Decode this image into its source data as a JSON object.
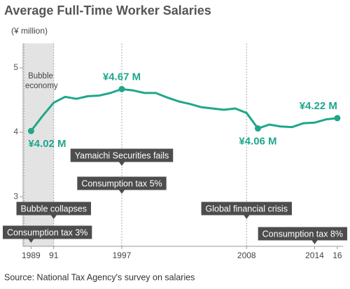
{
  "chart_data": {
    "type": "line",
    "title": "Average Full-Time Worker Salaries",
    "y_label": "(¥ million)",
    "source": "Source: National Tax Agency's survey on salaries",
    "x": [
      1989,
      1990,
      1991,
      1992,
      1993,
      1994,
      1995,
      1996,
      1997,
      1998,
      1999,
      2000,
      2001,
      2002,
      2003,
      2004,
      2005,
      2006,
      2007,
      2008,
      2009,
      2010,
      2011,
      2012,
      2013,
      2014,
      2015,
      2016
    ],
    "series": [
      {
        "color": "#1fa78b",
        "values": [
          4.02,
          4.25,
          4.46,
          4.55,
          4.52,
          4.56,
          4.57,
          4.61,
          4.67,
          4.65,
          4.61,
          4.61,
          4.54,
          4.48,
          4.44,
          4.39,
          4.37,
          4.35,
          4.37,
          4.3,
          4.06,
          4.12,
          4.09,
          4.08,
          4.14,
          4.15,
          4.2,
          4.22
        ],
        "value_labels": [
          "¥4.02 M",
          null,
          null,
          null,
          null,
          null,
          null,
          null,
          "¥4.67 M",
          null,
          null,
          null,
          null,
          null,
          null,
          null,
          null,
          null,
          null,
          null,
          "¥4.06 M",
          null,
          null,
          null,
          null,
          null,
          null,
          "¥4.22 M"
        ]
      }
    ],
    "xlim": [
      1988.3,
      2016.5
    ],
    "ylim": [
      2.23,
      5.38
    ],
    "xticks": [
      1989,
      {
        "value": 1991,
        "label": "91"
      },
      1997,
      2008,
      2014,
      {
        "value": 2016,
        "label": "16"
      }
    ],
    "yticks": [
      3,
      4,
      5
    ],
    "shaded_region": {
      "x": [
        1989,
        1991
      ],
      "label": "Bubble economy"
    },
    "reference_lines": [
      1997,
      2008
    ],
    "annotations": [
      {
        "text": "Yamaichi Securities fails",
        "x": 1997
      },
      {
        "text": "Consumption tax 5%",
        "x": 1997
      },
      {
        "text": "Bubble collapses",
        "x": 1991
      },
      {
        "text": "Global financial crisis",
        "x": 2008
      },
      {
        "text": "Consumption tax 3%",
        "x": 1989
      },
      {
        "text": "Consumption tax 8%",
        "x": 2014
      }
    ]
  }
}
